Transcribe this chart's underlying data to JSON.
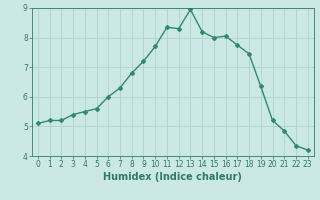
{
  "x": [
    0,
    1,
    2,
    3,
    4,
    5,
    6,
    7,
    8,
    9,
    10,
    11,
    12,
    13,
    14,
    15,
    16,
    17,
    18,
    19,
    20,
    21,
    22,
    23
  ],
  "y": [
    5.1,
    5.2,
    5.2,
    5.4,
    5.5,
    5.6,
    6.0,
    6.3,
    6.8,
    7.2,
    7.7,
    8.35,
    8.3,
    8.95,
    8.2,
    8.0,
    8.05,
    7.75,
    7.45,
    6.35,
    5.2,
    4.85,
    4.35,
    4.2
  ],
  "line_color": "#2e8b6e",
  "marker": "D",
  "marker_size": 2.0,
  "background_color": "#cce8e4",
  "grid_color": "#aacfcc",
  "xlabel": "Humidex (Indice chaleur)",
  "ylim": [
    4,
    9
  ],
  "xlim": [
    -0.5,
    23.5
  ],
  "yticks": [
    4,
    5,
    6,
    7,
    8,
    9
  ],
  "xticks": [
    0,
    1,
    2,
    3,
    4,
    5,
    6,
    7,
    8,
    9,
    10,
    11,
    12,
    13,
    14,
    15,
    16,
    17,
    18,
    19,
    20,
    21,
    22,
    23
  ],
  "tick_fontsize": 5.5,
  "xlabel_fontsize": 7.0,
  "axis_color": "#2e7b6a",
  "line_width": 1.0
}
